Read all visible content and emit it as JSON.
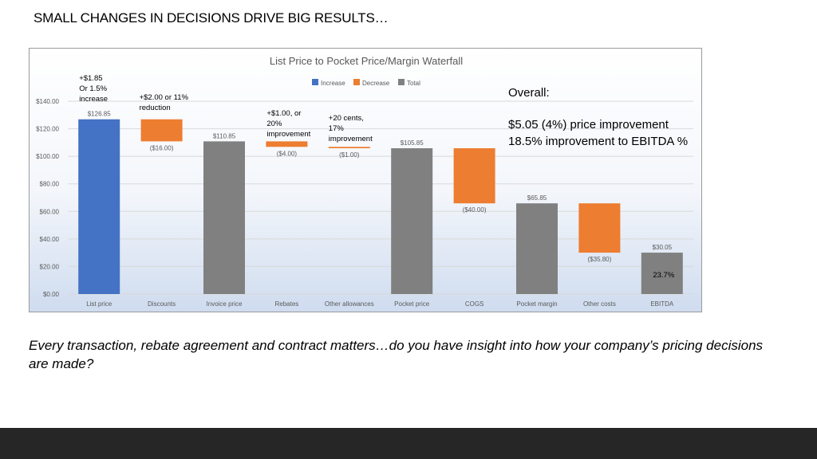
{
  "slide": {
    "title": "SMALL CHANGES IN DECISIONS DRIVE BIG RESULTS…",
    "footer": "Every transaction, rebate agreement and contract matters…do you have insight into how your company’s pricing decisions are made?"
  },
  "colors": {
    "increase": "#4472c4",
    "decrease": "#ed7d31",
    "total": "#808080",
    "bottom_bar": "#262626"
  },
  "chart_data": {
    "type": "waterfall",
    "title": "List Price to Pocket Price/Margin Waterfall",
    "legend": [
      "Increase",
      "Decrease",
      "Total"
    ],
    "legend_position": "top-center",
    "ylim": [
      0,
      140
    ],
    "yticks": [
      0,
      20,
      40,
      60,
      80,
      100,
      120,
      140
    ],
    "ytick_labels": [
      "$0.00",
      "$20.00",
      "$40.00",
      "$60.00",
      "$80.00",
      "$100.00",
      "$120.00",
      "$140.00"
    ],
    "grid": true,
    "categories": [
      "List price",
      "Discounts",
      "Invoice price",
      "Rebates",
      "Other allowances",
      "Pocket price",
      "COGS",
      "Pocket margin",
      "Other costs",
      "EBITDA"
    ],
    "bars": [
      {
        "category": "List price",
        "kind": "increase",
        "base": 0,
        "top": 126.85,
        "label": "$126.85"
      },
      {
        "category": "Discounts",
        "kind": "decrease",
        "base": 110.85,
        "top": 126.85,
        "label": "($16.00)"
      },
      {
        "category": "Invoice price",
        "kind": "total",
        "base": 0,
        "top": 110.85,
        "label": "$110.85"
      },
      {
        "category": "Rebates",
        "kind": "decrease",
        "base": 106.85,
        "top": 110.85,
        "label": "($4.00)"
      },
      {
        "category": "Other allowances",
        "kind": "decrease",
        "base": 105.85,
        "top": 106.85,
        "label": "($1.00)"
      },
      {
        "category": "Pocket price",
        "kind": "total",
        "base": 0,
        "top": 105.85,
        "label": "$105.85"
      },
      {
        "category": "COGS",
        "kind": "decrease",
        "base": 65.85,
        "top": 105.85,
        "label": "($40.00)"
      },
      {
        "category": "Pocket margin",
        "kind": "total",
        "base": 0,
        "top": 65.85,
        "label": "$65.85"
      },
      {
        "category": "Other costs",
        "kind": "decrease",
        "base": 30.05,
        "top": 65.85,
        "label": "($35.80)"
      },
      {
        "category": "EBITDA",
        "kind": "total",
        "base": 0,
        "top": 30.05,
        "label": "$30.05"
      }
    ],
    "annotations": [
      {
        "category": "List price",
        "lines": [
          "+$1.85",
          "Or 1.5%",
          "increase"
        ]
      },
      {
        "category": "Discounts",
        "lines": [
          "+$2.00 or 11%",
          "reduction"
        ]
      },
      {
        "category": "Rebates",
        "lines": [
          "+$1.00, or",
          "20%",
          "improvement"
        ]
      },
      {
        "category": "Other allowances",
        "lines": [
          "+20 cents,",
          "17%",
          "improvement"
        ]
      },
      {
        "category": "EBITDA",
        "lines": [
          "23.7%"
        ]
      }
    ],
    "overall": {
      "heading": "Overall:",
      "lines": [
        "$5.05 (4%) price improvement",
        "18.5% improvement to EBITDA %"
      ]
    }
  }
}
